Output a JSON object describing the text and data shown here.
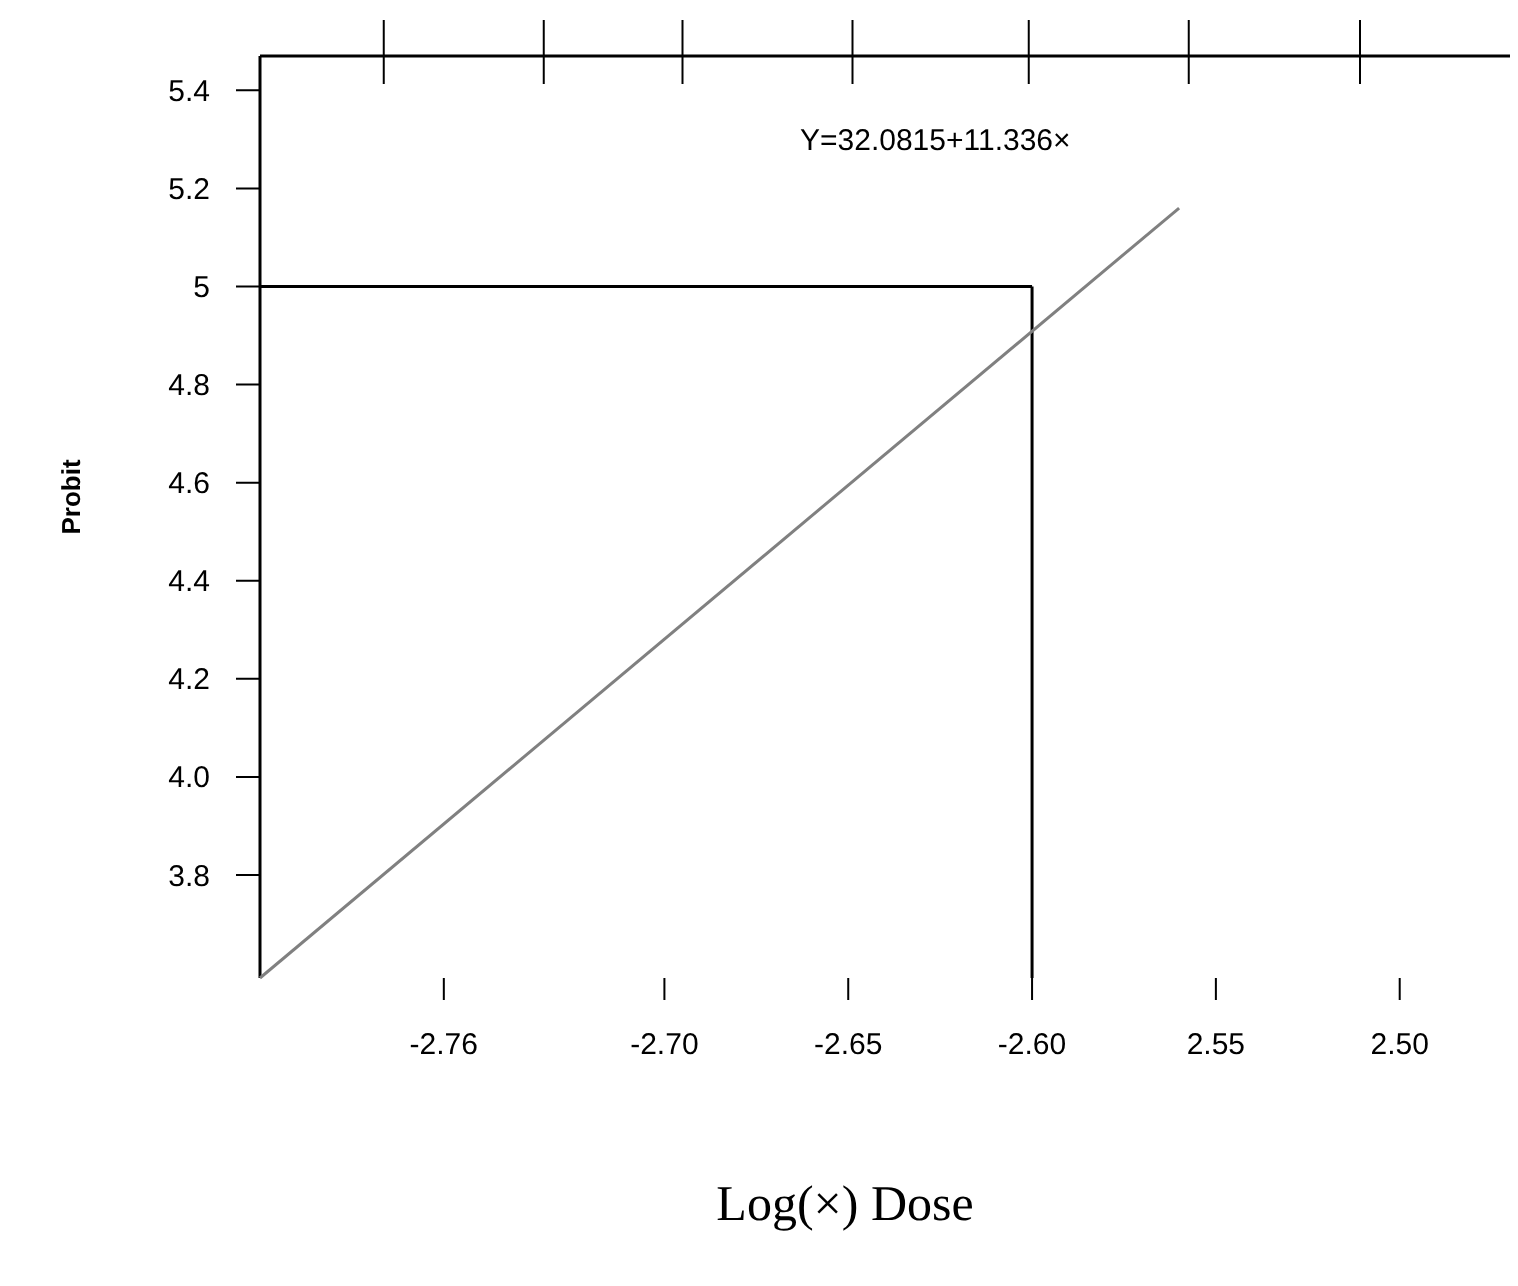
{
  "chart_data": {
    "type": "line",
    "xlabel": "Log(×) Dose",
    "ylabel": "Probit",
    "xlim": [
      -2.81,
      -2.47
    ],
    "ylim": [
      3.59,
      5.47
    ],
    "xticks": [
      -2.76,
      {
        "value": -2.7,
        "label": "-2.70"
      },
      -2.65,
      {
        "value": -2.6,
        "label": "-2.60"
      },
      {
        "value": -2.55,
        "label": "2.55"
      },
      {
        "value": -2.5,
        "label": "2.50"
      }
    ],
    "yticks": [
      5.4,
      5.2,
      5,
      4.8,
      4.6,
      4.4,
      4.2,
      {
        "value": 4,
        "label": "4.0"
      },
      3.8
    ],
    "series": [
      {
        "color": "#808080",
        "x": [
          -2.81,
          -2.56
        ],
        "values": [
          3.59,
          5.16
        ]
      }
    ],
    "ref_lines": [
      {
        "axis": "y",
        "value": 5,
        "color": "#000000"
      },
      {
        "axis": "x",
        "value": -2.6,
        "color": "#000000"
      }
    ],
    "annotations": [
      "Y=32.0815+11.336×"
    ],
    "grid": false,
    "marker": "none",
    "line_style": "solid"
  }
}
